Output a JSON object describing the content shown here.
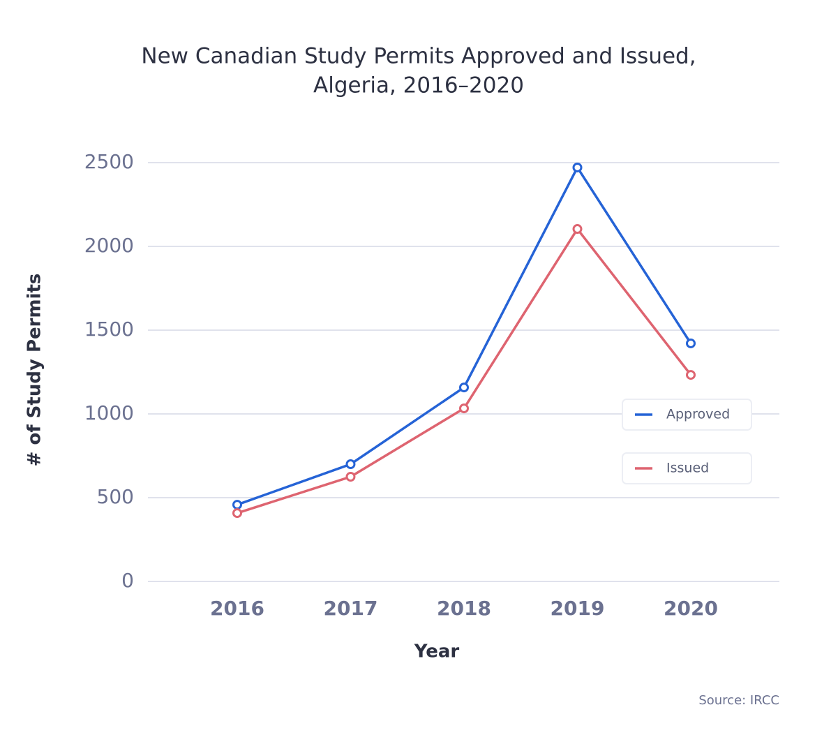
{
  "chart_data": {
    "type": "line",
    "title": "New Canadian Study Permits Approved and Issued,",
    "subtitle": "Algeria, 2016–2020",
    "x_label": "Year",
    "y_label": "# of Study Permits",
    "source": "Source: IRCC",
    "categories": [
      "2016",
      "2017",
      "2018",
      "2019",
      "2020"
    ],
    "series": [
      {
        "name": "Approved",
        "color": "#2563d6",
        "values": [
          458,
          700,
          1158,
          2471,
          1421
        ]
      },
      {
        "name": "Issued",
        "color": "#de6470",
        "values": [
          408,
          625,
          1033,
          2104,
          1233
        ]
      }
    ],
    "ylim": [
      0,
      2500
    ],
    "yticks": [
      0,
      500,
      1000,
      1500,
      2000,
      2500
    ],
    "grid": true,
    "legend": "right"
  }
}
